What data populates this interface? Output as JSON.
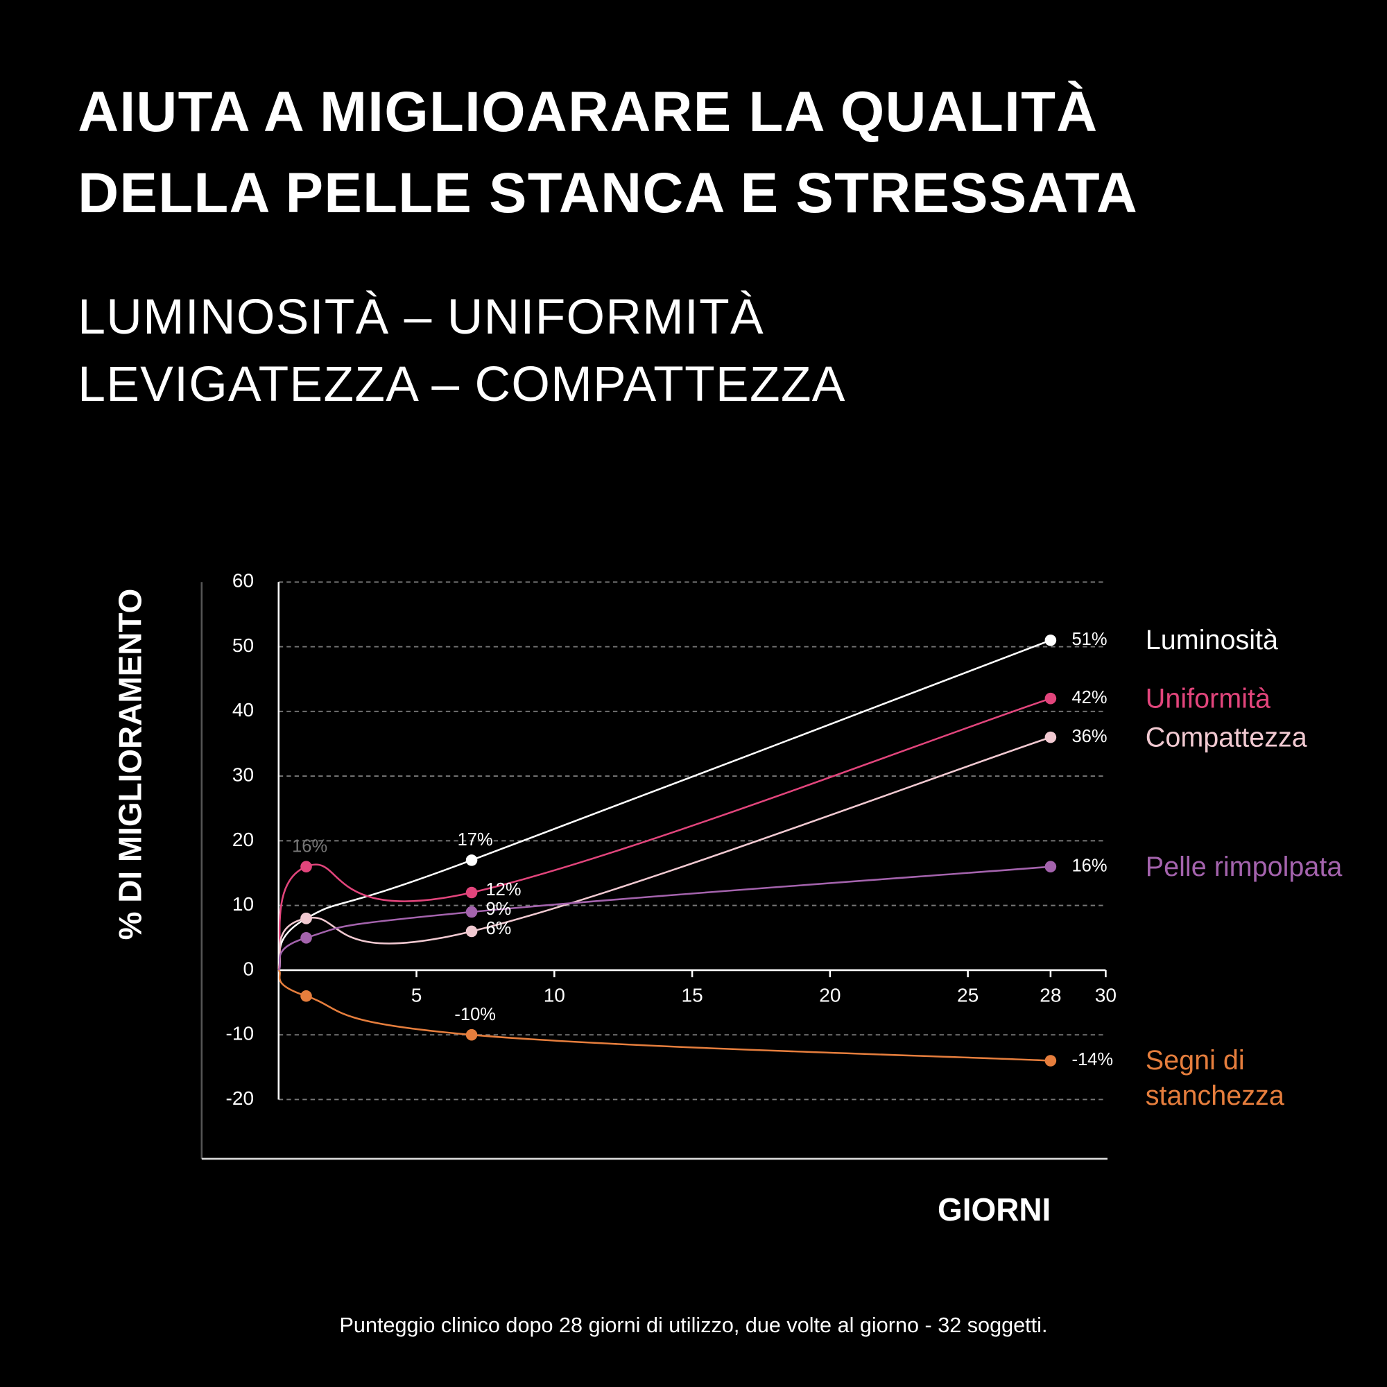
{
  "chart_data": {
    "type": "line",
    "title": [
      "AIUTA A MIGLIOARARE LA QUALITÀ",
      "DELLA PELLE STANCA E STRESSATA"
    ],
    "subtitle": [
      "LUMINOSITÀ – UNIFORMITÀ",
      "LEVIGATEZZA – COMPATTEZZA"
    ],
    "y_label": "% DI MIGLIORAMENTO",
    "x_label": "GIORNI",
    "note": "Punteggio clinico dopo 28 giorni di utilizzo, due volte al giorno - 32 soggetti.",
    "x": [
      0,
      1,
      7,
      28
    ],
    "series": [
      {
        "name": "Luminosità",
        "color": "#ffffff",
        "values": [
          0,
          8,
          17,
          51
        ],
        "value_labels": [
          null,
          null,
          "17%",
          "51%"
        ]
      },
      {
        "name": "Uniformità",
        "color": "#e2457c",
        "values": [
          0,
          16,
          12,
          42
        ],
        "value_labels": [
          null,
          "16%",
          "12%",
          "42%"
        ]
      },
      {
        "name": "Compattezza",
        "color": "#f1c9d1",
        "values": [
          0,
          8,
          6,
          36
        ],
        "value_labels": [
          null,
          null,
          "6%",
          "36%"
        ]
      },
      {
        "name": "Pelle rimpolpata",
        "color": "#a463ad",
        "values": [
          0,
          5,
          9,
          16
        ],
        "value_labels": [
          null,
          null,
          "9%",
          "16%"
        ]
      },
      {
        "name": "Segni di stanchezza",
        "color": "#e67e3d",
        "values": [
          0,
          -4,
          -10,
          -14
        ],
        "value_labels": [
          null,
          null,
          "-10%",
          "-14%"
        ]
      }
    ],
    "xlim": [
      0,
      30
    ],
    "xticks": [
      5,
      10,
      15,
      20,
      25,
      28,
      30
    ],
    "ylim": [
      -20,
      60
    ],
    "yticks": [
      -20,
      -10,
      0,
      10,
      20,
      30,
      40,
      50,
      60
    ],
    "grid": true
  }
}
